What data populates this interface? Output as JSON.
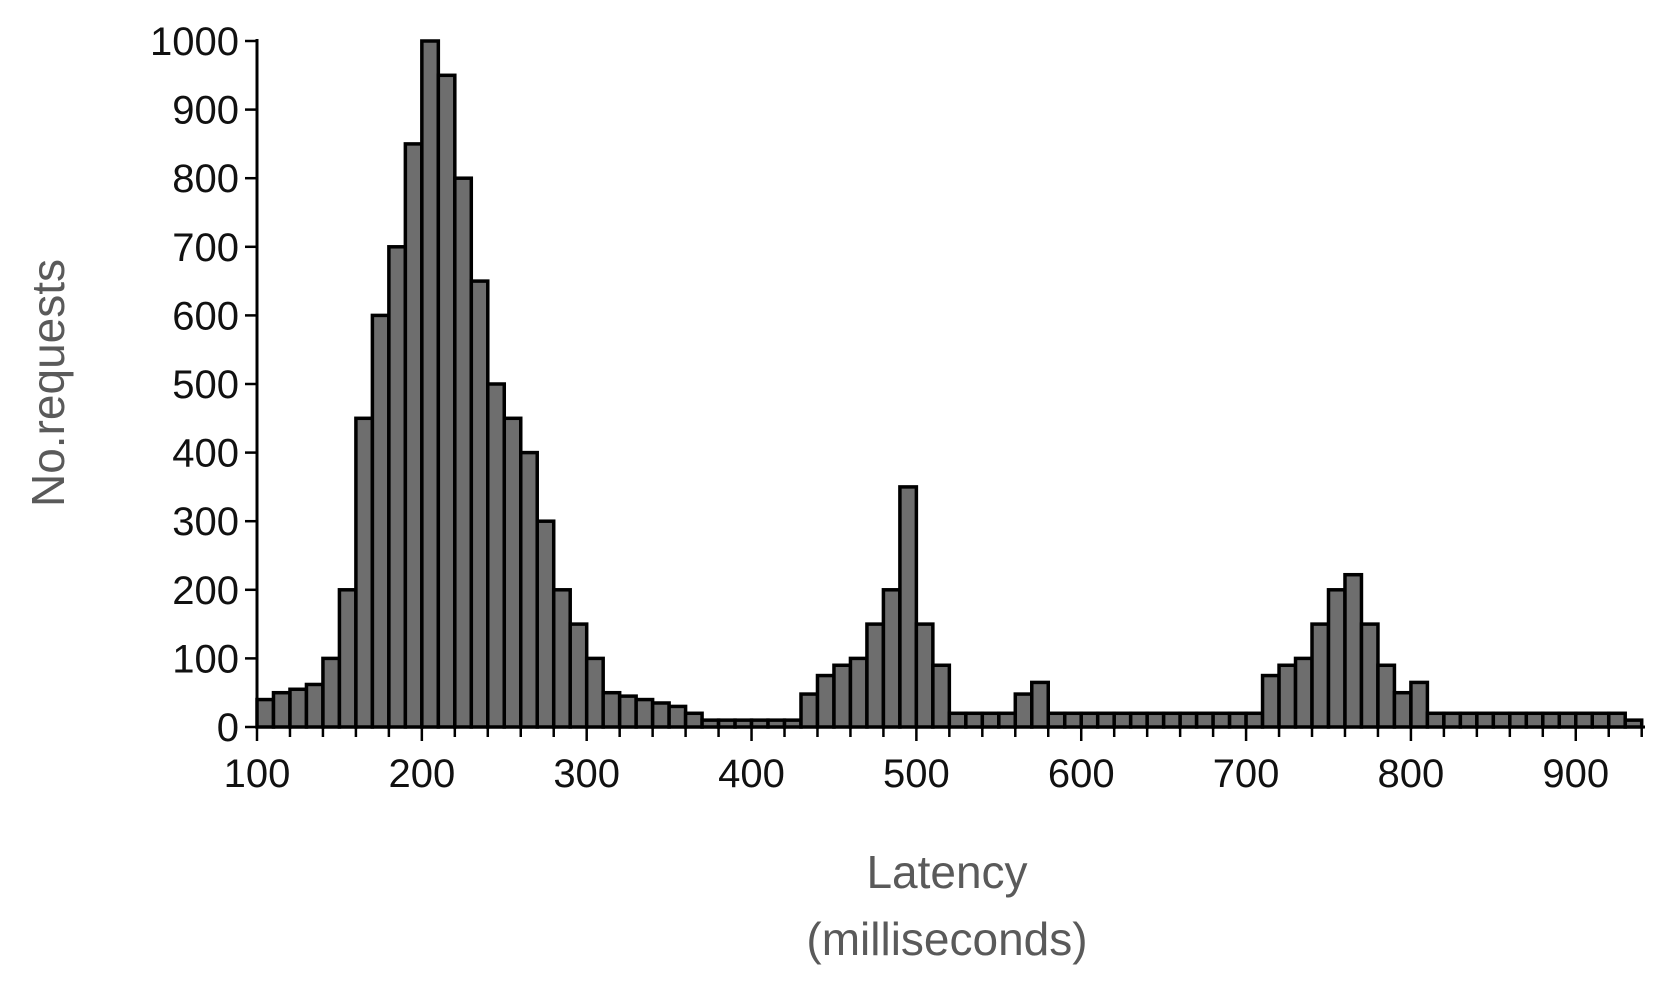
{
  "chart_data": {
    "type": "bar",
    "title": "",
    "ylabel": "No.requests",
    "xlabel_lines": [
      "Latency",
      "(milliseconds)"
    ],
    "xlim": [
      100,
      942
    ],
    "ylim": [
      0,
      1000
    ],
    "bin_width": 10,
    "x_ticks": [
      "100",
      "200",
      "300",
      "400",
      "500",
      "600",
      "700",
      "800",
      "900"
    ],
    "y_ticks": [
      "0",
      "100",
      "200",
      "300",
      "400",
      "500",
      "600",
      "700",
      "800",
      "900",
      "1000"
    ],
    "grid": false,
    "legend": "none",
    "bar_color": "#6e6e6e",
    "bin_starts": [
      100,
      110,
      120,
      130,
      140,
      150,
      160,
      170,
      180,
      190,
      200,
      210,
      220,
      230,
      240,
      250,
      260,
      270,
      280,
      290,
      300,
      310,
      320,
      330,
      340,
      350,
      360,
      370,
      380,
      390,
      400,
      410,
      420,
      430,
      440,
      450,
      460,
      470,
      480,
      490,
      500,
      510,
      520,
      530,
      540,
      550,
      560,
      570,
      580,
      590,
      600,
      610,
      620,
      630,
      640,
      650,
      660,
      670,
      680,
      690,
      700,
      710,
      720,
      730,
      740,
      750,
      760,
      770,
      780,
      790,
      800,
      810,
      820,
      830,
      840,
      850,
      860,
      870,
      880,
      890,
      900,
      910,
      920,
      930
    ],
    "values": [
      40,
      50,
      55,
      62,
      100,
      200,
      450,
      600,
      700,
      850,
      1000,
      950,
      800,
      650,
      500,
      450,
      400,
      300,
      200,
      150,
      100,
      50,
      45,
      40,
      35,
      30,
      20,
      10,
      10,
      10,
      10,
      10,
      10,
      48,
      75,
      90,
      100,
      150,
      200,
      350,
      150,
      90,
      20,
      20,
      20,
      20,
      48,
      65,
      20,
      20,
      20,
      20,
      20,
      20,
      20,
      20,
      20,
      20,
      20,
      20,
      20,
      75,
      90,
      100,
      150,
      200,
      222,
      150,
      90,
      50,
      65,
      20,
      20,
      20,
      20,
      20,
      20,
      20,
      20,
      20,
      20,
      20,
      20,
      10
    ]
  }
}
